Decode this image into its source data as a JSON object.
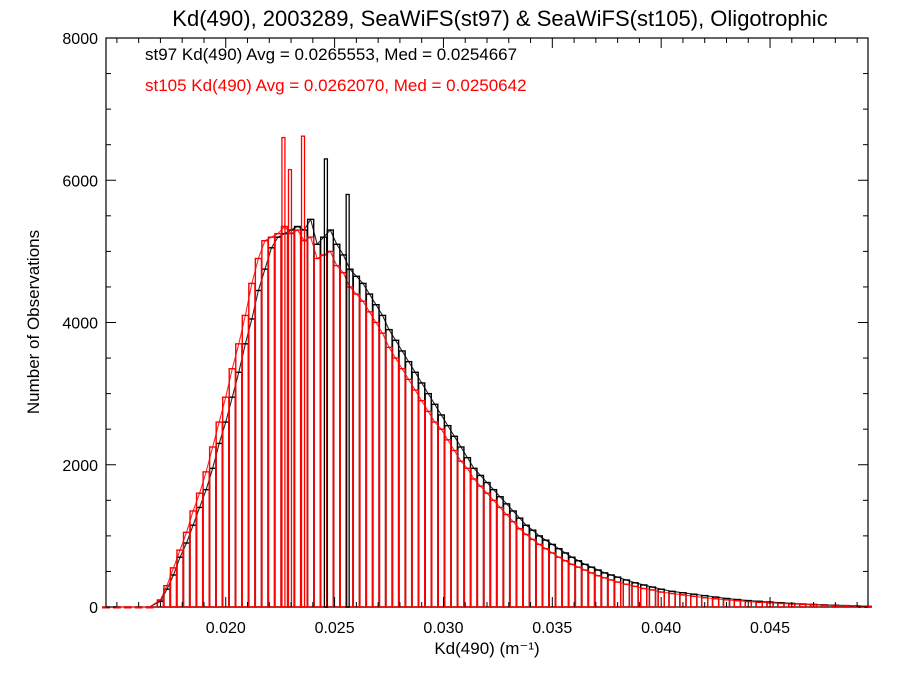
{
  "chart_data": {
    "type": "histogram",
    "title": "Kd(490), 2003289, SeaWiFS(st97) & SeaWiFS(st105), Oligotrophic",
    "xlabel": "Kd(490) (m⁻¹)",
    "ylabel": "Number of Observations",
    "xlim": [
      0.0145,
      0.0495
    ],
    "ylim": [
      0,
      8000
    ],
    "xticks": [
      0.02,
      0.025,
      0.03,
      0.035,
      0.04,
      0.045
    ],
    "xtick_labels": [
      "0.020",
      "0.025",
      "0.030",
      "0.035",
      "0.040",
      "0.045"
    ],
    "yticks": [
      0,
      2000,
      4000,
      6000,
      8000
    ],
    "ytick_labels": [
      "0",
      "2000",
      "4000",
      "6000",
      "8000"
    ],
    "annotations": [
      {
        "text": "st97 Kd(490) Avg = 0.0265553, Med = 0.0254667",
        "color": "#000000"
      },
      {
        "text": "st105 Kd(490) Avg = 0.0262070, Med = 0.0250642",
        "color": "#ff0000"
      }
    ],
    "series": [
      {
        "name": "st97",
        "color": "#000000",
        "x": [
          0.0145,
          0.015,
          0.0155,
          0.016,
          0.0165,
          0.017,
          0.0173,
          0.0176,
          0.0179,
          0.0182,
          0.0185,
          0.0188,
          0.0191,
          0.0194,
          0.0197,
          0.02,
          0.0203,
          0.0206,
          0.0209,
          0.0212,
          0.0215,
          0.0218,
          0.0221,
          0.0224,
          0.0227,
          0.023,
          0.0233,
          0.0236,
          0.0239,
          0.0242,
          0.0245,
          0.0248,
          0.0251,
          0.0254,
          0.0257,
          0.026,
          0.0263,
          0.0266,
          0.0269,
          0.0272,
          0.0275,
          0.0278,
          0.0281,
          0.0284,
          0.0287,
          0.029,
          0.0293,
          0.0296,
          0.0299,
          0.0302,
          0.0305,
          0.0308,
          0.0311,
          0.0314,
          0.0317,
          0.032,
          0.0323,
          0.0326,
          0.0329,
          0.0332,
          0.0335,
          0.0338,
          0.0341,
          0.0344,
          0.0347,
          0.035,
          0.0353,
          0.0356,
          0.0359,
          0.0362,
          0.0365,
          0.0368,
          0.0371,
          0.0374,
          0.0377,
          0.038,
          0.0384,
          0.0388,
          0.0392,
          0.0396,
          0.04,
          0.0405,
          0.041,
          0.0415,
          0.042,
          0.0425,
          0.043,
          0.0435,
          0.044,
          0.0445,
          0.045,
          0.0455,
          0.046,
          0.0465,
          0.047,
          0.0475,
          0.048,
          0.0485,
          0.049,
          0.0495
        ],
        "y": [
          0,
          0,
          0,
          0,
          0,
          80,
          250,
          450,
          700,
          900,
          1150,
          1400,
          1650,
          1950,
          2300,
          2600,
          2950,
          3300,
          3700,
          4050,
          4450,
          4750,
          5050,
          5200,
          5250,
          5300,
          5350,
          5300,
          5450,
          5100,
          5200,
          5300,
          5100,
          4950,
          4750,
          4650,
          4550,
          4400,
          4250,
          4100,
          3900,
          3750,
          3600,
          3450,
          3300,
          3150,
          3000,
          2850,
          2700,
          2550,
          2400,
          2250,
          2100,
          1950,
          1850,
          1750,
          1650,
          1550,
          1450,
          1350,
          1250,
          1150,
          1080,
          1000,
          940,
          880,
          820,
          760,
          700,
          650,
          600,
          560,
          520,
          480,
          450,
          420,
          380,
          340,
          310,
          280,
          250,
          220,
          200,
          180,
          160,
          140,
          120,
          105,
          90,
          80,
          70,
          60,
          50,
          42,
          36,
          30,
          25,
          20,
          15,
          10
        ]
      },
      {
        "name": "st105",
        "color": "#ff0000",
        "x": [
          0.0145,
          0.015,
          0.0155,
          0.016,
          0.0165,
          0.017,
          0.0173,
          0.0176,
          0.0179,
          0.0182,
          0.0185,
          0.0188,
          0.0191,
          0.0194,
          0.0197,
          0.02,
          0.0203,
          0.0206,
          0.0209,
          0.0212,
          0.0215,
          0.0218,
          0.0221,
          0.0224,
          0.0227,
          0.023,
          0.0233,
          0.0236,
          0.0239,
          0.0242,
          0.0245,
          0.0248,
          0.0251,
          0.0254,
          0.0257,
          0.026,
          0.0263,
          0.0266,
          0.0269,
          0.0272,
          0.0275,
          0.0278,
          0.0281,
          0.0284,
          0.0287,
          0.029,
          0.0293,
          0.0296,
          0.0299,
          0.0302,
          0.0305,
          0.0308,
          0.0311,
          0.0314,
          0.0317,
          0.032,
          0.0323,
          0.0326,
          0.0329,
          0.0332,
          0.0335,
          0.0338,
          0.0341,
          0.0344,
          0.0347,
          0.035,
          0.0353,
          0.0356,
          0.0359,
          0.0362,
          0.0365,
          0.0368,
          0.0371,
          0.0374,
          0.0377,
          0.038,
          0.0384,
          0.0388,
          0.0392,
          0.0396,
          0.04,
          0.0405,
          0.041,
          0.0415,
          0.042,
          0.0425,
          0.043,
          0.0435,
          0.044,
          0.0445,
          0.045,
          0.0455,
          0.046,
          0.0465,
          0.047,
          0.0475,
          0.048,
          0.0485,
          0.049,
          0.0495
        ],
        "y": [
          0,
          0,
          0,
          0,
          0,
          100,
          300,
          550,
          800,
          1050,
          1350,
          1600,
          1900,
          2250,
          2600,
          2950,
          3350,
          3700,
          4100,
          4550,
          4900,
          5150,
          5200,
          5250,
          5350,
          5250,
          5300,
          5150,
          5200,
          4900,
          4950,
          5000,
          4800,
          4700,
          4500,
          4400,
          4300,
          4150,
          4000,
          3850,
          3650,
          3500,
          3350,
          3200,
          3050,
          2900,
          2750,
          2600,
          2500,
          2350,
          2200,
          2050,
          1950,
          1800,
          1700,
          1600,
          1500,
          1400,
          1300,
          1200,
          1100,
          1020,
          950,
          880,
          820,
          760,
          700,
          650,
          600,
          560,
          520,
          480,
          440,
          410,
          380,
          350,
          320,
          290,
          260,
          240,
          210,
          190,
          170,
          150,
          130,
          115,
          100,
          88,
          76,
          66,
          58,
          50,
          42,
          36,
          30,
          25,
          20,
          16,
          12,
          8
        ]
      }
    ],
    "spikes": [
      {
        "series": "st105",
        "x": 0.02265,
        "y": 6600
      },
      {
        "series": "st105",
        "x": 0.02355,
        "y": 6620
      },
      {
        "series": "st105",
        "x": 0.02295,
        "y": 6150
      },
      {
        "series": "st97",
        "x": 0.0256,
        "y": 5800
      },
      {
        "series": "st97",
        "x": 0.0246,
        "y": 6300
      }
    ]
  }
}
